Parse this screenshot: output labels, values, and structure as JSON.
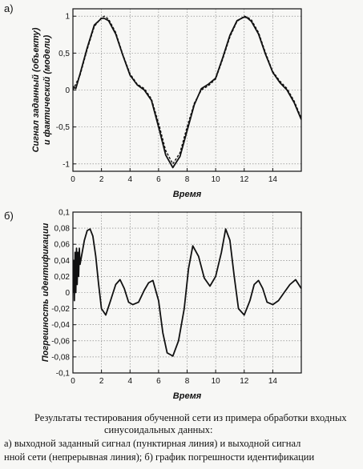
{
  "chart_data": [
    {
      "panel": "а)",
      "type": "line",
      "xlabel": "Время",
      "ylabel": [
        "Сигнал заданный (объекту)",
        "и фактический (модели)"
      ],
      "xlim": [
        0,
        16
      ],
      "ylim": [
        -1.1,
        1.1
      ],
      "x_ticks": [
        "0",
        "2",
        "4",
        "6",
        "8",
        "10",
        "12",
        "14"
      ],
      "y_ticks": [
        "1",
        "0,5",
        "0",
        "-0,5",
        "-1"
      ],
      "grid": true,
      "series": [
        {
          "style": "dashed",
          "x": [
            0,
            0.5,
            1,
            1.5,
            2,
            2.2,
            2.5,
            3,
            3.5,
            4,
            4.5,
            5,
            5.5,
            6,
            6.5,
            7,
            7.5,
            8,
            8.5,
            9,
            9.5,
            10,
            10.5,
            11,
            11.5,
            12,
            12.2,
            12.5,
            13,
            13.5,
            14,
            14.5,
            15,
            15.5,
            16
          ],
          "y": [
            0.0,
            0.2,
            0.55,
            0.86,
            0.98,
            1.0,
            0.96,
            0.78,
            0.48,
            0.22,
            0.08,
            0.02,
            -0.12,
            -0.45,
            -0.82,
            -1.0,
            -0.85,
            -0.5,
            -0.18,
            0.0,
            0.06,
            0.15,
            0.42,
            0.72,
            0.93,
            1.0,
            0.99,
            0.95,
            0.78,
            0.5,
            0.25,
            0.12,
            0.02,
            -0.15,
            -0.38
          ]
        },
        {
          "style": "solid",
          "x": [
            0,
            0.2,
            0.5,
            1,
            1.5,
            2,
            2.2,
            2.5,
            3,
            3.5,
            4,
            4.5,
            5,
            5.5,
            6,
            6.5,
            7,
            7.5,
            8,
            8.5,
            9,
            9.5,
            10,
            10.5,
            11,
            11.5,
            12,
            12.2,
            12.5,
            13,
            13.5,
            14,
            14.5,
            15,
            15.5,
            16
          ],
          "y": [
            0.05,
            0.02,
            0.22,
            0.57,
            0.88,
            0.97,
            0.97,
            0.94,
            0.76,
            0.47,
            0.2,
            0.07,
            0.0,
            -0.14,
            -0.5,
            -0.88,
            -1.05,
            -0.9,
            -0.55,
            -0.2,
            0.02,
            0.08,
            0.16,
            0.44,
            0.74,
            0.94,
            0.99,
            0.98,
            0.93,
            0.76,
            0.48,
            0.24,
            0.1,
            0.0,
            -0.17,
            -0.4
          ]
        }
      ]
    },
    {
      "panel": "б)",
      "type": "line",
      "xlabel": "Время",
      "ylabel": [
        "Погрешность идентификации"
      ],
      "xlim": [
        0,
        16
      ],
      "ylim": [
        -0.1,
        0.1
      ],
      "x_ticks": [
        "0",
        "2",
        "4",
        "6",
        "8",
        "10",
        "12",
        "14"
      ],
      "y_ticks": [
        "0,1",
        "0,08",
        "0,06",
        "0,04",
        "0,02",
        "0",
        "-0,02",
        "-0,04",
        "-0,06",
        "-0,08",
        "-0,1"
      ],
      "grid": true,
      "series": [
        {
          "style": "solid",
          "x": [
            0,
            0.05,
            0.1,
            0.15,
            0.2,
            0.25,
            0.3,
            0.35,
            0.4,
            0.45,
            0.5,
            0.6,
            0.8,
            1.0,
            1.2,
            1.4,
            1.6,
            1.8,
            2.0,
            2.3,
            2.6,
            3.0,
            3.3,
            3.6,
            3.9,
            4.2,
            4.6,
            5.0,
            5.3,
            5.6,
            6.0,
            6.3,
            6.6,
            7.0,
            7.4,
            7.8,
            8.1,
            8.4,
            8.8,
            9.2,
            9.6,
            10.0,
            10.4,
            10.7,
            11.0,
            11.3,
            11.6,
            12.0,
            12.4,
            12.7,
            13.0,
            13.3,
            13.6,
            14.0,
            14.4,
            14.8,
            15.2,
            15.6,
            16.0
          ],
          "y": [
            0.0,
            0.04,
            -0.01,
            0.05,
            0.0,
            0.055,
            0.01,
            0.05,
            0.02,
            0.055,
            0.035,
            0.045,
            0.065,
            0.077,
            0.079,
            0.07,
            0.045,
            0.01,
            -0.02,
            -0.028,
            -0.012,
            0.01,
            0.016,
            0.005,
            -0.012,
            -0.015,
            -0.012,
            0.003,
            0.012,
            0.015,
            -0.01,
            -0.05,
            -0.075,
            -0.079,
            -0.06,
            -0.02,
            0.03,
            0.058,
            0.045,
            0.018,
            0.008,
            0.02,
            0.05,
            0.079,
            0.065,
            0.02,
            -0.02,
            -0.028,
            -0.01,
            0.01,
            0.015,
            0.005,
            -0.012,
            -0.015,
            -0.01,
            0.0,
            0.01,
            0.016,
            0.005
          ]
        }
      ]
    }
  ],
  "caption": {
    "line1": "Результаты тестирования обученной сети из примера обработки входных",
    "line2": "синусоидальных данных:",
    "line3": "а) выходной заданный сигнал (пунктирная линия) и выходной сигнал",
    "line4": "нной сети (непрерывная линия);  б) график погрешности идентификации"
  }
}
